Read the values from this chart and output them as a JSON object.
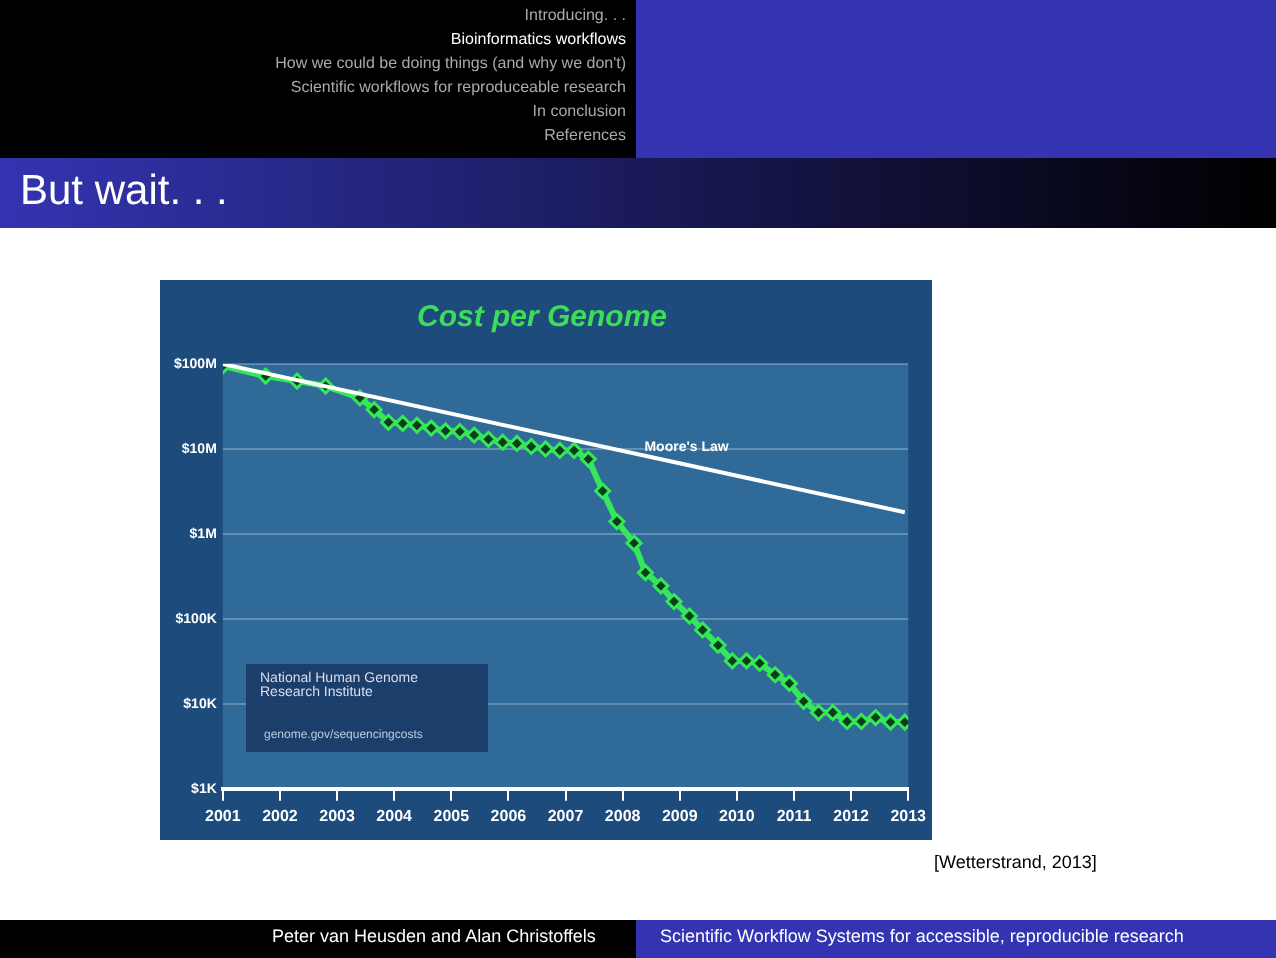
{
  "chart_data": {
    "type": "line",
    "title": "Cost per Genome",
    "xlim": [
      2001,
      2013
    ],
    "xticks": [
      2001,
      2002,
      2003,
      2004,
      2005,
      2006,
      2007,
      2008,
      2009,
      2010,
      2011,
      2012,
      2013
    ],
    "log": "y",
    "ylim": [
      1000,
      100000000
    ],
    "yticks": [
      {
        "value": 1000,
        "label": "$1K"
      },
      {
        "value": 10000,
        "label": "$10K"
      },
      {
        "value": 100000,
        "label": "$100K"
      },
      {
        "value": 1000000,
        "label": "$1M"
      },
      {
        "value": 10000000,
        "label": "$10M"
      },
      {
        "value": 100000000,
        "label": "$100M"
      }
    ],
    "grid": "y",
    "legend": false,
    "marker": "diamond",
    "line_style": "solid",
    "series": [
      {
        "color": "#ffffff",
        "marker": "none",
        "x": [
          2001,
          2012.94
        ],
        "values": [
          100000000,
          1800000
        ],
        "name": "Moore's Law"
      },
      {
        "color": "#35e85a",
        "x": [
          2001,
          2001.75,
          2002.3,
          2002.8,
          2003.4,
          2003.65,
          2003.9,
          2004.15,
          2004.4,
          2004.65,
          2004.9,
          2005.15,
          2005.4,
          2005.65,
          2005.9,
          2006.15,
          2006.4,
          2006.65,
          2006.9,
          2007.15,
          2007.4,
          2007.65,
          2007.9,
          2008.2,
          2008.4,
          2008.67,
          2008.9,
          2009.17,
          2009.4,
          2009.67,
          2009.92,
          2010.17,
          2010.4,
          2010.67,
          2010.92,
          2011.17,
          2011.43,
          2011.68,
          2011.93,
          2012.18,
          2012.43,
          2012.69,
          2012.94
        ],
        "values": [
          95000000,
          72000000,
          63000000,
          55000000,
          40000000,
          29000000,
          20600000,
          20000000,
          19000000,
          17600000,
          16300000,
          16000000,
          14600000,
          13000000,
          12000000,
          11600000,
          10700000,
          10000000,
          9600000,
          9600000,
          7600000,
          3200000,
          1400000,
          780000,
          350000,
          245000,
          160000,
          108000,
          74000,
          49000,
          32000,
          32000,
          30000,
          22000,
          17400,
          10700,
          7900,
          7900,
          6200,
          6200,
          6900,
          6100,
          6100
        ]
      }
    ],
    "annotations": [
      "Introducing. . .",
      "Bioinformatics workflows",
      "How we could be doing things (and why we don't)",
      "Scientific workflows for reproduceable research",
      "In conclusion",
      "References",
      "But wait. . .",
      "National Human Genome Research Institute",
      "genome.gov/sequencingcosts",
      "[Wetterstrand, 2013]",
      "Peter van Heusden and Alan Christoffels",
      "Scientific Workflow Systems for accessible, reproducible research"
    ]
  }
}
